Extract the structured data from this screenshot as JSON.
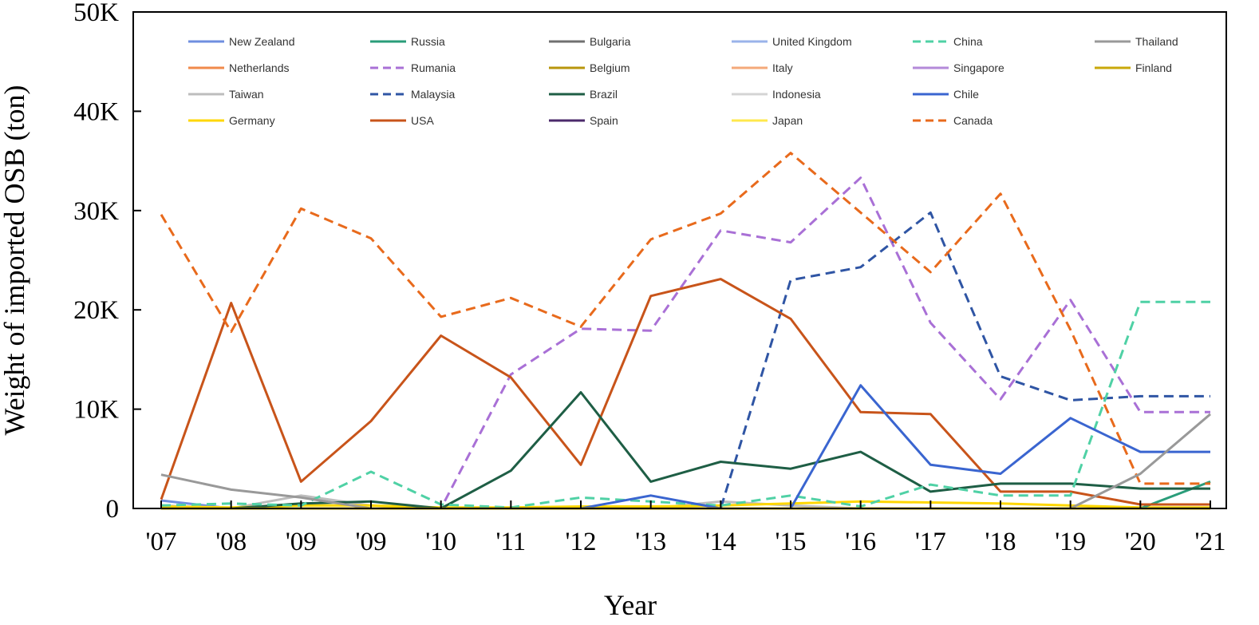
{
  "chart_data": {
    "type": "line",
    "title": "",
    "xlabel": "Year",
    "ylabel": "Weight of imported OSB (ton)",
    "x": [
      "'07",
      "'08",
      "'09",
      "'09",
      "'10",
      "'11",
      "'12",
      "'13",
      "'14",
      "'15",
      "'16",
      "'17",
      "'18",
      "'19",
      "'20",
      "'21"
    ],
    "ylim": [
      0,
      50000
    ],
    "yticks": [
      0,
      10000,
      20000,
      30000,
      40000,
      50000
    ],
    "ytick_labels": [
      "0",
      "10K",
      "20K",
      "30K",
      "40K",
      "50K"
    ],
    "grid": false,
    "legend_position": "top",
    "series": [
      {
        "name": "New Zealand",
        "color": "#6f8fe0",
        "dash": "solid",
        "values": [
          800,
          0,
          0,
          0,
          0,
          0,
          0,
          0,
          0,
          0,
          0,
          0,
          0,
          0,
          0,
          0
        ]
      },
      {
        "name": "Netherlands",
        "color": "#f08a4b",
        "dash": "solid",
        "values": [
          0,
          0,
          0,
          0,
          0,
          0,
          0,
          0,
          0,
          0,
          0,
          0,
          0,
          0,
          0,
          0
        ]
      },
      {
        "name": "Taiwan",
        "color": "#bdbdbd",
        "dash": "solid",
        "values": [
          300,
          0,
          1300,
          300,
          0,
          0,
          0,
          0,
          700,
          300,
          0,
          0,
          0,
          0,
          0,
          0
        ]
      },
      {
        "name": "Germany",
        "color": "#ffd700",
        "dash": "solid",
        "values": [
          200,
          100,
          300,
          300,
          100,
          100,
          200,
          200,
          300,
          500,
          700,
          600,
          500,
          300,
          100,
          100
        ]
      },
      {
        "name": "Russia",
        "color": "#2a9d7a",
        "dash": "solid",
        "values": [
          0,
          0,
          0,
          0,
          0,
          0,
          0,
          0,
          0,
          0,
          0,
          0,
          0,
          0,
          0,
          2700
        ]
      },
      {
        "name": "Rumania",
        "color": "#a970d6",
        "dash": "dashed",
        "values": [
          0,
          0,
          0,
          0,
          0,
          13500,
          18100,
          17900,
          28000,
          26800,
          33300,
          18700,
          11000,
          21000,
          9700,
          9700
        ]
      },
      {
        "name": "Malaysia",
        "color": "#2f55a4",
        "dash": "dashed",
        "values": [
          0,
          0,
          0,
          0,
          0,
          0,
          0,
          0,
          0,
          23000,
          24300,
          29800,
          13300,
          10900,
          11300,
          11300
        ]
      },
      {
        "name": "USA",
        "color": "#c8541a",
        "dash": "solid",
        "values": [
          900,
          20700,
          2700,
          8800,
          17400,
          13200,
          4400,
          21400,
          23100,
          19100,
          9700,
          9500,
          1700,
          1700,
          400,
          400
        ]
      },
      {
        "name": "Bulgaria",
        "color": "#707070",
        "dash": "solid",
        "values": [
          0,
          0,
          0,
          0,
          0,
          0,
          0,
          0,
          0,
          0,
          0,
          0,
          0,
          0,
          0,
          0
        ]
      },
      {
        "name": "Belgium",
        "color": "#b8960c",
        "dash": "solid",
        "values": [
          0,
          0,
          0,
          0,
          0,
          0,
          0,
          0,
          0,
          0,
          0,
          0,
          0,
          0,
          0,
          0
        ]
      },
      {
        "name": "Brazil",
        "color": "#1e5e45",
        "dash": "solid",
        "values": [
          0,
          0,
          500,
          700,
          0,
          3800,
          11700,
          2700,
          4700,
          4000,
          5700,
          1700,
          2500,
          2500,
          2000,
          2000
        ]
      },
      {
        "name": "Spain",
        "color": "#4b2a6b",
        "dash": "solid",
        "values": [
          0,
          0,
          0,
          0,
          0,
          0,
          0,
          0,
          0,
          0,
          0,
          0,
          0,
          0,
          0,
          0
        ]
      },
      {
        "name": "United Kingdom",
        "color": "#9ab3ea",
        "dash": "solid",
        "values": [
          0,
          0,
          0,
          0,
          0,
          0,
          0,
          0,
          0,
          0,
          0,
          0,
          0,
          0,
          0,
          0
        ]
      },
      {
        "name": "Italy",
        "color": "#f4a97a",
        "dash": "solid",
        "values": [
          0,
          0,
          0,
          0,
          0,
          0,
          0,
          0,
          0,
          0,
          0,
          0,
          0,
          0,
          0,
          0
        ]
      },
      {
        "name": "Indonesia",
        "color": "#d4d4d4",
        "dash": "solid",
        "values": [
          0,
          0,
          0,
          0,
          0,
          0,
          0,
          0,
          0,
          0,
          0,
          0,
          0,
          0,
          0,
          0
        ]
      },
      {
        "name": "Japan",
        "color": "#ffe84d",
        "dash": "solid",
        "values": [
          0,
          0,
          0,
          0,
          0,
          0,
          0,
          0,
          0,
          0,
          0,
          0,
          0,
          0,
          0,
          0
        ]
      },
      {
        "name": "China",
        "color": "#4fd1a5",
        "dash": "dashed",
        "values": [
          300,
          500,
          300,
          3700,
          400,
          100,
          1100,
          700,
          300,
          1300,
          200,
          2400,
          1300,
          1300,
          20800,
          20800
        ]
      },
      {
        "name": "Singapore",
        "color": "#b48ad9",
        "dash": "solid",
        "values": [
          0,
          0,
          0,
          0,
          0,
          0,
          0,
          0,
          0,
          0,
          0,
          0,
          0,
          0,
          0,
          0
        ]
      },
      {
        "name": "Chile",
        "color": "#3a65d0",
        "dash": "solid",
        "values": [
          0,
          0,
          0,
          0,
          0,
          0,
          0,
          1300,
          0,
          0,
          12400,
          4400,
          3500,
          9100,
          5700,
          5700
        ]
      },
      {
        "name": "Canada",
        "color": "#e86a1c",
        "dash": "dashed",
        "values": [
          29600,
          17800,
          30200,
          27200,
          19300,
          21200,
          18300,
          27100,
          29700,
          35800,
          29800,
          23800,
          31700,
          18000,
          2500,
          2500
        ]
      },
      {
        "name": "Thailand",
        "color": "#999999",
        "dash": "solid",
        "values": [
          3400,
          1900,
          1100,
          0,
          0,
          0,
          0,
          0,
          0,
          0,
          0,
          0,
          0,
          0,
          3500,
          9500
        ]
      },
      {
        "name": "Finland",
        "color": "#c9a80a",
        "dash": "solid",
        "values": [
          0,
          0,
          0,
          0,
          0,
          0,
          0,
          0,
          0,
          0,
          0,
          0,
          0,
          0,
          0,
          0
        ]
      }
    ]
  }
}
